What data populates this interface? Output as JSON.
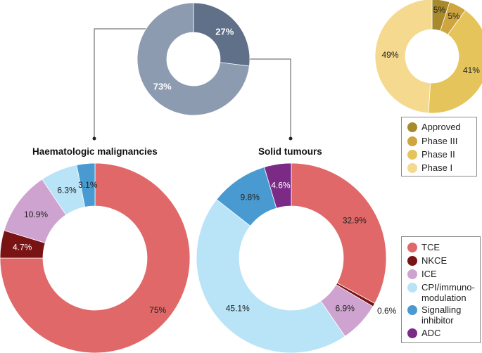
{
  "chart_data": [
    {
      "id": "overall",
      "type": "pie",
      "donut": true,
      "slices": [
        {
          "label": "Haematologic malignancies",
          "value": 27,
          "text": "27%",
          "color": "#5f7088"
        },
        {
          "label": "Solid tumours",
          "value": 73,
          "text": "73%",
          "color": "#8d9bb1"
        }
      ]
    },
    {
      "id": "phase",
      "type": "pie",
      "donut": true,
      "slices": [
        {
          "label": "Approved",
          "value": 5,
          "text": "5%",
          "color": "#a88a2c"
        },
        {
          "label": "Phase III",
          "value": 5,
          "text": "5%",
          "color": "#cfa53f"
        },
        {
          "label": "Phase II",
          "value": 41,
          "text": "41%",
          "color": "#e6c45c"
        },
        {
          "label": "Phase I",
          "value": 49,
          "text": "49%",
          "color": "#f4d98f"
        }
      ],
      "legend": [
        "Approved",
        "Phase III",
        "Phase II",
        "Phase I"
      ],
      "legend_position": "below"
    },
    {
      "id": "haem",
      "type": "pie",
      "donut": true,
      "title": "Haematologic malignancies",
      "slices": [
        {
          "label": "TCE",
          "value": 75,
          "text": "75%",
          "color": "#e06868"
        },
        {
          "label": "NKCE",
          "value": 4.7,
          "text": "4.7%",
          "color": "#7a1414"
        },
        {
          "label": "ICE",
          "value": 10.9,
          "text": "10.9%",
          "color": "#cfa3cf"
        },
        {
          "label": "CPI/immuno-modulation",
          "value": 6.3,
          "text": "6.3%",
          "color": "#b9e3f7"
        },
        {
          "label": "Signalling inhibitor",
          "value": 3.1,
          "text": "3.1%",
          "color": "#4a9ad2"
        }
      ]
    },
    {
      "id": "solid",
      "type": "pie",
      "donut": true,
      "title": "Solid tumours",
      "slices": [
        {
          "label": "TCE",
          "value": 32.9,
          "text": "32.9%",
          "color": "#e06868"
        },
        {
          "label": "NKCE",
          "value": 0.6,
          "text": "0.6%",
          "color": "#7a1414"
        },
        {
          "label": "ICE",
          "value": 6.9,
          "text": "6.9%",
          "color": "#cfa3cf"
        },
        {
          "label": "CPI/immuno-modulation",
          "value": 45.1,
          "text": "45.1%",
          "color": "#b9e3f7"
        },
        {
          "label": "Signalling inhibitor",
          "value": 9.8,
          "text": "9.8%",
          "color": "#4a9ad2"
        },
        {
          "label": "ADC",
          "value": 4.6,
          "text": "4.6%",
          "color": "#7b2b86"
        }
      ]
    }
  ],
  "category_legend": [
    {
      "label": "TCE",
      "color": "#e06868"
    },
    {
      "label": "NKCE",
      "color": "#7a1414"
    },
    {
      "label": "ICE",
      "color": "#cfa3cf"
    },
    {
      "label": "CPI/immuno-\nmodulation",
      "color": "#b9e3f7"
    },
    {
      "label": "Signalling\ninhibitor",
      "color": "#4a9ad2"
    },
    {
      "label": "ADC",
      "color": "#7b2b86"
    }
  ],
  "phase_legend": [
    {
      "label": "Approved",
      "color": "#a88a2c"
    },
    {
      "label": "Phase III",
      "color": "#cfa53f"
    },
    {
      "label": "Phase II",
      "color": "#e6c45c"
    },
    {
      "label": "Phase I",
      "color": "#f4d98f"
    }
  ],
  "titles": {
    "haem": "Haematologic malignancies",
    "solid": "Solid tumours"
  }
}
